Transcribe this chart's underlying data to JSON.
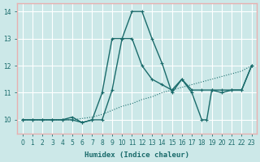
{
  "xlabel": "Humidex (Indice chaleur)",
  "xlim": [
    -0.5,
    23.5
  ],
  "ylim": [
    9.5,
    14.3
  ],
  "yticks": [
    10,
    11,
    12,
    13,
    14
  ],
  "xticks": [
    0,
    1,
    2,
    3,
    4,
    5,
    6,
    7,
    8,
    9,
    10,
    11,
    12,
    13,
    14,
    15,
    16,
    17,
    18,
    19,
    20,
    21,
    22,
    23
  ],
  "bg_color": "#cce8e8",
  "line_color": "#1a6b6b",
  "grid_color": "#ffffff",
  "border_color": "#e8b0b0",
  "line1_x": [
    0,
    1,
    2,
    3,
    4,
    5,
    6,
    7,
    8,
    9,
    10,
    11,
    12,
    13,
    14,
    15,
    16,
    17,
    18,
    19,
    20,
    21,
    22,
    23
  ],
  "line1_y": [
    10.0,
    10.0,
    10.0,
    10.0,
    10.0,
    10.0,
    10.05,
    10.1,
    10.2,
    10.35,
    10.5,
    10.6,
    10.75,
    10.85,
    11.0,
    11.1,
    11.2,
    11.3,
    11.4,
    11.5,
    11.6,
    11.7,
    11.8,
    12.0
  ],
  "line2_x": [
    0,
    1,
    2,
    3,
    4,
    5,
    6,
    7,
    8,
    9,
    10,
    11,
    12,
    13,
    14,
    15,
    16,
    17,
    18,
    19,
    20,
    21,
    22,
    23
  ],
  "line2_y": [
    10.0,
    10.0,
    10.0,
    10.0,
    10.0,
    10.0,
    9.9,
    10.0,
    11.0,
    13.0,
    13.0,
    14.0,
    14.0,
    13.0,
    12.1,
    11.0,
    11.5,
    11.1,
    11.1,
    11.1,
    11.1,
    11.1,
    11.1,
    12.0
  ],
  "line3_x": [
    0,
    1,
    2,
    3,
    4,
    5,
    6,
    7,
    8,
    9,
    10,
    11,
    12,
    13,
    14,
    15,
    16,
    17,
    18,
    18.5,
    19,
    20,
    21,
    22,
    23
  ],
  "line3_y": [
    10.0,
    10.0,
    10.0,
    10.0,
    10.0,
    10.1,
    9.9,
    10.0,
    10.0,
    11.1,
    13.0,
    13.0,
    12.0,
    11.5,
    11.3,
    11.1,
    11.5,
    11.0,
    10.0,
    10.0,
    11.1,
    11.0,
    11.1,
    11.1,
    12.0
  ]
}
